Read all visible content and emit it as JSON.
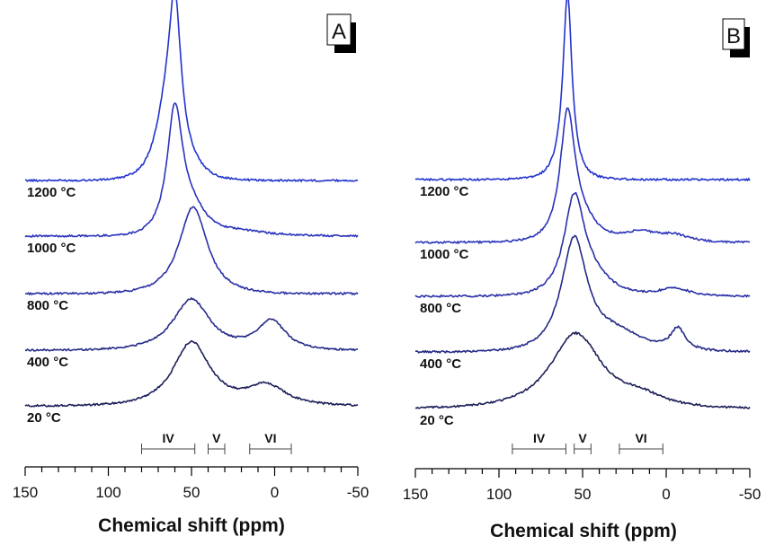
{
  "chart_data": [
    {
      "panel": "A",
      "type": "line",
      "xlabel": "Chemical shift (ppm)",
      "xlim": [
        150,
        -50
      ],
      "xticks": [
        "150",
        "100",
        "50",
        "0",
        "-50"
      ],
      "regions": [
        {
          "label": "IV",
          "from": 80,
          "to": 48
        },
        {
          "label": "V",
          "from": 40,
          "to": 30
        },
        {
          "label": "VI",
          "from": 15,
          "to": -10
        }
      ],
      "series": [
        {
          "name": "1200 °C",
          "color": "#2233cc",
          "baseline": 0.0,
          "peaks": [
            {
              "center": 60,
              "height": 1.0,
              "width": 4.5
            },
            {
              "center": 66,
              "height": 0.32,
              "width": 8
            },
            {
              "center": 50,
              "height": 0.06,
              "width": 10
            }
          ]
        },
        {
          "name": "1000 °C",
          "color": "#2a33bb",
          "baseline": 0.0,
          "peaks": [
            {
              "center": 60,
              "height": 0.77,
              "width": 5.5
            },
            {
              "center": 50,
              "height": 0.16,
              "width": 11
            },
            {
              "center": 20,
              "height": 0.03,
              "width": 20
            }
          ]
        },
        {
          "name": "800 °C",
          "color": "#2a2fa6",
          "baseline": 0.0,
          "peaks": [
            {
              "center": 49,
              "height": 0.56,
              "width": 10
            }
          ]
        },
        {
          "name": "400 °C",
          "color": "#252a86",
          "baseline": 0.0,
          "peaks": [
            {
              "center": 50,
              "height": 0.33,
              "width": 13
            },
            {
              "center": 2,
              "height": 0.19,
              "width": 10
            }
          ]
        },
        {
          "name": "20 °C",
          "color": "#1c1f58",
          "baseline": 0.0,
          "peaks": [
            {
              "center": 50,
              "height": 0.41,
              "width": 13
            },
            {
              "center": 5,
              "height": 0.13,
              "width": 14
            }
          ]
        }
      ]
    },
    {
      "panel": "B",
      "type": "line",
      "xlabel": "Chemical shift (ppm)",
      "xlim": [
        150,
        -50
      ],
      "xticks": [
        "150",
        "100",
        "50",
        "0",
        "-50"
      ],
      "regions": [
        {
          "label": "IV",
          "from": 92,
          "to": 60
        },
        {
          "label": "V",
          "from": 55,
          "to": 45
        },
        {
          "label": "VI",
          "from": 28,
          "to": 2
        }
      ],
      "series": [
        {
          "name": "1200 °C",
          "color": "#2233cc",
          "baseline": 0.0,
          "peaks": [
            {
              "center": 59,
              "height": 1.0,
              "width": 3
            },
            {
              "center": 60,
              "height": 0.15,
              "width": 8
            }
          ]
        },
        {
          "name": "1000 °C",
          "color": "#2a33bb",
          "baseline": 0.0,
          "peaks": [
            {
              "center": 59,
              "height": 0.72,
              "width": 5
            },
            {
              "center": 52,
              "height": 0.15,
              "width": 12
            },
            {
              "center": 15,
              "height": 0.06,
              "width": 12
            },
            {
              "center": -5,
              "height": 0.04,
              "width": 10
            }
          ]
        },
        {
          "name": "800 °C",
          "color": "#2a2fa6",
          "baseline": 0.0,
          "peaks": [
            {
              "center": 55,
              "height": 0.56,
              "width": 7
            },
            {
              "center": 45,
              "height": 0.12,
              "width": 14
            },
            {
              "center": -5,
              "height": 0.05,
              "width": 10
            }
          ]
        },
        {
          "name": "400 °C",
          "color": "#252a86",
          "baseline": 0.0,
          "peaks": [
            {
              "center": 55,
              "height": 0.67,
              "width": 9
            },
            {
              "center": 30,
              "height": 0.12,
              "width": 20
            },
            {
              "center": -7,
              "height": 0.13,
              "width": 5
            }
          ]
        },
        {
          "name": "20 °C",
          "color": "#1c1f58",
          "baseline": 0.0,
          "peaks": [
            {
              "center": 54,
              "height": 0.46,
              "width": 18
            },
            {
              "center": 15,
              "height": 0.06,
              "width": 16
            }
          ]
        }
      ]
    }
  ]
}
